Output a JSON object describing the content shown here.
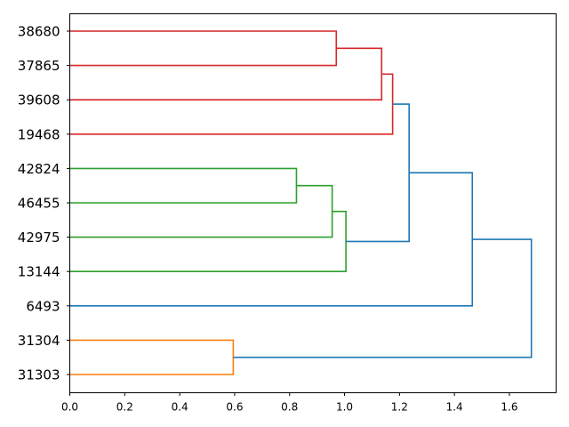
{
  "chart_data": {
    "type": "dendrogram",
    "orientation": "horizontal",
    "xlim": [
      0.0,
      1.77
    ],
    "x_ticks": [
      {
        "value": 0.0,
        "label": "0.0"
      },
      {
        "value": 0.2,
        "label": "0.2"
      },
      {
        "value": 0.4,
        "label": "0.4"
      },
      {
        "value": 0.6,
        "label": "0.6"
      },
      {
        "value": 0.8,
        "label": "0.8"
      },
      {
        "value": 1.0,
        "label": "1.0"
      },
      {
        "value": 1.2,
        "label": "1.2"
      },
      {
        "value": 1.4,
        "label": "1.4"
      },
      {
        "value": 1.6,
        "label": "1.6"
      }
    ],
    "leaves": [
      "38680",
      "37865",
      "39608",
      "19468",
      "42824",
      "46455",
      "42975",
      "13144",
      "6493",
      "31304",
      "31303"
    ],
    "colors": {
      "red": "#d62728",
      "green": "#2ca02c",
      "orange": "#ff7f0e",
      "blue": "#1f77b4"
    },
    "merges": [
      {
        "id": "m1",
        "children": [
          "38680",
          "37865"
        ],
        "distance": 0.97,
        "color": "red"
      },
      {
        "id": "m2",
        "children": [
          "m1",
          "39608"
        ],
        "distance": 1.135,
        "color": "red"
      },
      {
        "id": "m3",
        "children": [
          "m2",
          "19468"
        ],
        "distance": 1.175,
        "color": "red"
      },
      {
        "id": "m4",
        "children": [
          "42824",
          "46455"
        ],
        "distance": 0.825,
        "color": "green"
      },
      {
        "id": "m5",
        "children": [
          "m4",
          "42975"
        ],
        "distance": 0.955,
        "color": "green"
      },
      {
        "id": "m6",
        "children": [
          "m5",
          "13144"
        ],
        "distance": 1.005,
        "color": "green"
      },
      {
        "id": "m7",
        "children": [
          "m3",
          "m6"
        ],
        "distance": 1.235,
        "color": "blue"
      },
      {
        "id": "m8",
        "children": [
          "m7",
          "6493"
        ],
        "distance": 1.465,
        "color": "blue"
      },
      {
        "id": "m9",
        "children": [
          "31304",
          "31303"
        ],
        "distance": 0.595,
        "color": "orange"
      },
      {
        "id": "m10",
        "children": [
          "m8",
          "m9"
        ],
        "distance": 1.68,
        "color": "blue"
      }
    ]
  }
}
